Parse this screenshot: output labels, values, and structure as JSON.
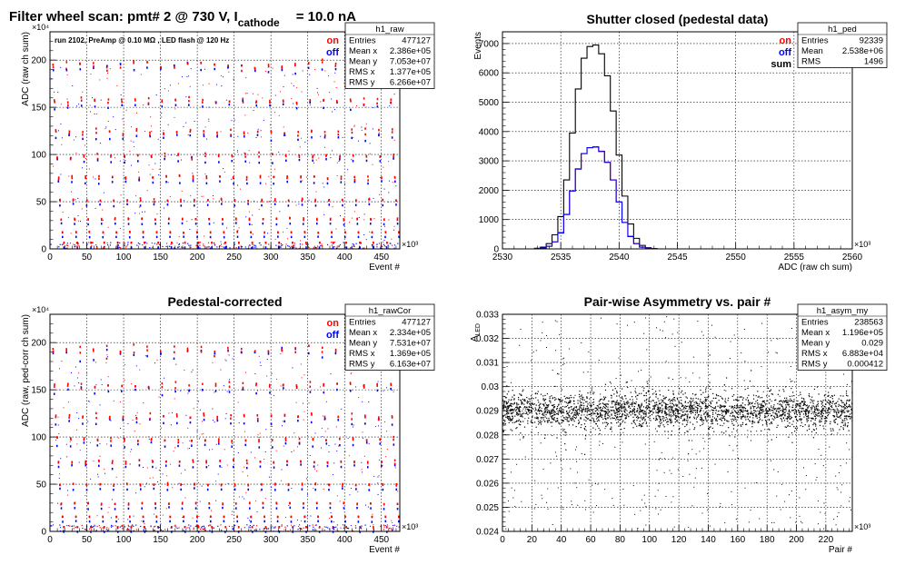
{
  "figure": {
    "title_parts": {
      "prefix": "Filter wheel scan: pmt#   2 @   730 V, I",
      "subscript": "cathode",
      "suffix": "= 10.0 nA"
    }
  },
  "colors": {
    "on": "#ff0000",
    "off": "#0000ff",
    "sum": "#000000",
    "grid": "#000000"
  },
  "chart_data": [
    {
      "id": "raw",
      "type": "scatter",
      "title": "",
      "xlabel": "Event #",
      "ylabel": "ADC (raw ch sum)",
      "xlim": [
        0,
        475000
      ],
      "ylim": [
        0,
        2300000
      ],
      "x_exponent": "×10³",
      "y_exponent": "×10⁴",
      "xticks": [
        0,
        50,
        100,
        150,
        200,
        250,
        300,
        350,
        400,
        450
      ],
      "yticks": [
        0,
        50,
        100,
        150,
        200
      ],
      "xtick_labels": [
        "0",
        "50",
        "100",
        "150",
        "200",
        "250",
        "300",
        "350",
        "400",
        "450"
      ],
      "ytick_labels": [
        "0",
        "50",
        "100",
        "150",
        "200"
      ],
      "annotation": "run 2102, PreAmp @ 0.10 MΩ , LED flash @  120 Hz",
      "legend": [
        {
          "label": "on",
          "color": "#ff0000"
        },
        {
          "label": "off",
          "color": "#0000ff"
        }
      ],
      "band_levels": [
        1930000,
        1540000,
        1210000,
        960000,
        730000,
        490000,
        290000,
        150000,
        40000
      ],
      "grid": true,
      "stats": {
        "name": "h1_raw",
        "rows": [
          [
            "Entries",
            "477127"
          ],
          [
            "Mean x",
            "2.386e+05"
          ],
          [
            "Mean y",
            "7.053e+07"
          ],
          [
            "RMS x",
            "1.377e+05"
          ],
          [
            "RMS y",
            "6.266e+07"
          ]
        ]
      }
    },
    {
      "id": "ped",
      "type": "line",
      "title": "Shutter closed (pedestal data)",
      "xlabel": "ADC (raw ch sum)",
      "ylabel": "Events",
      "xlim": [
        2530000,
        2560000
      ],
      "ylim": [
        0,
        7400
      ],
      "x_exponent": "×10³",
      "xticks": [
        2530,
        2535,
        2540,
        2545,
        2550,
        2555,
        2560
      ],
      "xtick_labels": [
        "2530",
        "2535",
        "2540",
        "2545",
        "2550",
        "2555",
        "2560"
      ],
      "yticks": [
        0,
        1000,
        2000,
        3000,
        4000,
        5000,
        6000,
        7000
      ],
      "ytick_labels": [
        "0",
        "1000",
        "2000",
        "3000",
        "4000",
        "5000",
        "6000",
        "7000"
      ],
      "legend": [
        {
          "label": "on",
          "color": "#ff0000"
        },
        {
          "label": "off",
          "color": "#0000ff"
        },
        {
          "label": "sum",
          "color": "#000000"
        }
      ],
      "grid": true,
      "series": [
        {
          "name": "sum",
          "color": "#000000",
          "x": [
            2533.0,
            2533.5,
            2534.0,
            2534.5,
            2535.0,
            2535.5,
            2536.0,
            2536.5,
            2537.0,
            2537.5,
            2538.0,
            2538.5,
            2539.0,
            2539.5,
            2540.0,
            2540.5,
            2541.0,
            2541.5,
            2542.0,
            2542.5,
            2543.0
          ],
          "values": [
            20,
            60,
            180,
            480,
            1100,
            2350,
            3950,
            5450,
            6500,
            6900,
            6950,
            6650,
            5900,
            4700,
            3200,
            1800,
            850,
            360,
            120,
            40,
            10
          ]
        },
        {
          "name": "on",
          "color": "#ff0000",
          "x": [
            2533.0,
            2533.5,
            2534.0,
            2534.5,
            2535.0,
            2535.5,
            2536.0,
            2536.5,
            2537.0,
            2537.5,
            2538.0,
            2538.5,
            2539.0,
            2539.5,
            2540.0,
            2540.5,
            2541.0,
            2541.5,
            2542.0,
            2542.5,
            2543.0
          ],
          "values": [
            10,
            30,
            90,
            240,
            560,
            1180,
            1980,
            2730,
            3250,
            3450,
            3480,
            3330,
            2950,
            2350,
            1600,
            900,
            430,
            180,
            60,
            20,
            5
          ]
        },
        {
          "name": "off",
          "color": "#0000ff",
          "x": [
            2533.0,
            2533.5,
            2534.0,
            2534.5,
            2535.0,
            2535.5,
            2536.0,
            2536.5,
            2537.0,
            2537.5,
            2538.0,
            2538.5,
            2539.0,
            2539.5,
            2540.0,
            2540.5,
            2541.0,
            2541.5,
            2542.0,
            2542.5,
            2543.0
          ],
          "values": [
            10,
            30,
            90,
            240,
            540,
            1170,
            1970,
            2720,
            3250,
            3450,
            3470,
            3320,
            2950,
            2350,
            1600,
            900,
            420,
            180,
            60,
            20,
            5
          ]
        }
      ],
      "stats": {
        "name": "h1_ped",
        "rows": [
          [
            "Entries",
            "92339"
          ],
          [
            "Mean",
            "2.538e+06"
          ],
          [
            "RMS",
            "1496"
          ]
        ]
      }
    },
    {
      "id": "rawCor",
      "type": "scatter",
      "title": "Pedestal-corrected",
      "xlabel": "Event #",
      "ylabel": "ADC (raw, ped-corr ch sum)",
      "xlim": [
        0,
        475000
      ],
      "ylim": [
        0,
        2300000
      ],
      "x_exponent": "×10³",
      "y_exponent": "×10⁴",
      "xticks": [
        0,
        50,
        100,
        150,
        200,
        250,
        300,
        350,
        400,
        450
      ],
      "yticks": [
        0,
        50,
        100,
        150,
        200
      ],
      "xtick_labels": [
        "0",
        "50",
        "100",
        "150",
        "200",
        "250",
        "300",
        "350",
        "400",
        "450"
      ],
      "ytick_labels": [
        "0",
        "50",
        "100",
        "150",
        "200"
      ],
      "legend": [
        {
          "label": "on",
          "color": "#ff0000"
        },
        {
          "label": "off",
          "color": "#0000ff"
        }
      ],
      "band_levels": [
        1900000,
        1520000,
        1190000,
        940000,
        710000,
        470000,
        270000,
        130000,
        20000
      ],
      "grid": true,
      "stats": {
        "name": "h1_rawCor",
        "rows": [
          [
            "Entries",
            "477127"
          ],
          [
            "Mean x",
            "2.334e+05"
          ],
          [
            "Mean y",
            "7.531e+07"
          ],
          [
            "RMS x",
            "1.369e+05"
          ],
          [
            "RMS y",
            "6.163e+07"
          ]
        ]
      }
    },
    {
      "id": "asym",
      "type": "scatter",
      "title": "Pair-wise Asymmetry vs. pair #",
      "xlabel": "Pair #",
      "ylabel": "A_LED",
      "ylabel_main": "A",
      "ylabel_sub": "LED",
      "xlim": [
        0,
        238000
      ],
      "ylim": [
        0.024,
        0.033
      ],
      "x_exponent": "×10³",
      "xticks": [
        0,
        20,
        40,
        60,
        80,
        100,
        120,
        140,
        160,
        180,
        200,
        220
      ],
      "xtick_labels": [
        "0",
        "20",
        "40",
        "60",
        "80",
        "100",
        "120",
        "140",
        "160",
        "180",
        "200",
        "220"
      ],
      "yticks": [
        0.024,
        0.025,
        0.026,
        0.027,
        0.028,
        0.029,
        0.03,
        0.031,
        0.032,
        0.033
      ],
      "ytick_labels": [
        "0.024",
        "0.025",
        "0.026",
        "0.027",
        "0.028",
        "0.029",
        "0.03",
        "0.031",
        "0.032",
        "0.033"
      ],
      "band_center": 0.029,
      "band_halfwidth": 0.0006,
      "grid": true,
      "stats": {
        "name": "h1_asym_my",
        "rows": [
          [
            "Entries",
            "238563"
          ],
          [
            "Mean x",
            "1.196e+05"
          ],
          [
            "Mean y",
            "0.029"
          ],
          [
            "RMS x",
            "6.883e+04"
          ],
          [
            "RMS y",
            "0.000412"
          ]
        ]
      }
    }
  ]
}
